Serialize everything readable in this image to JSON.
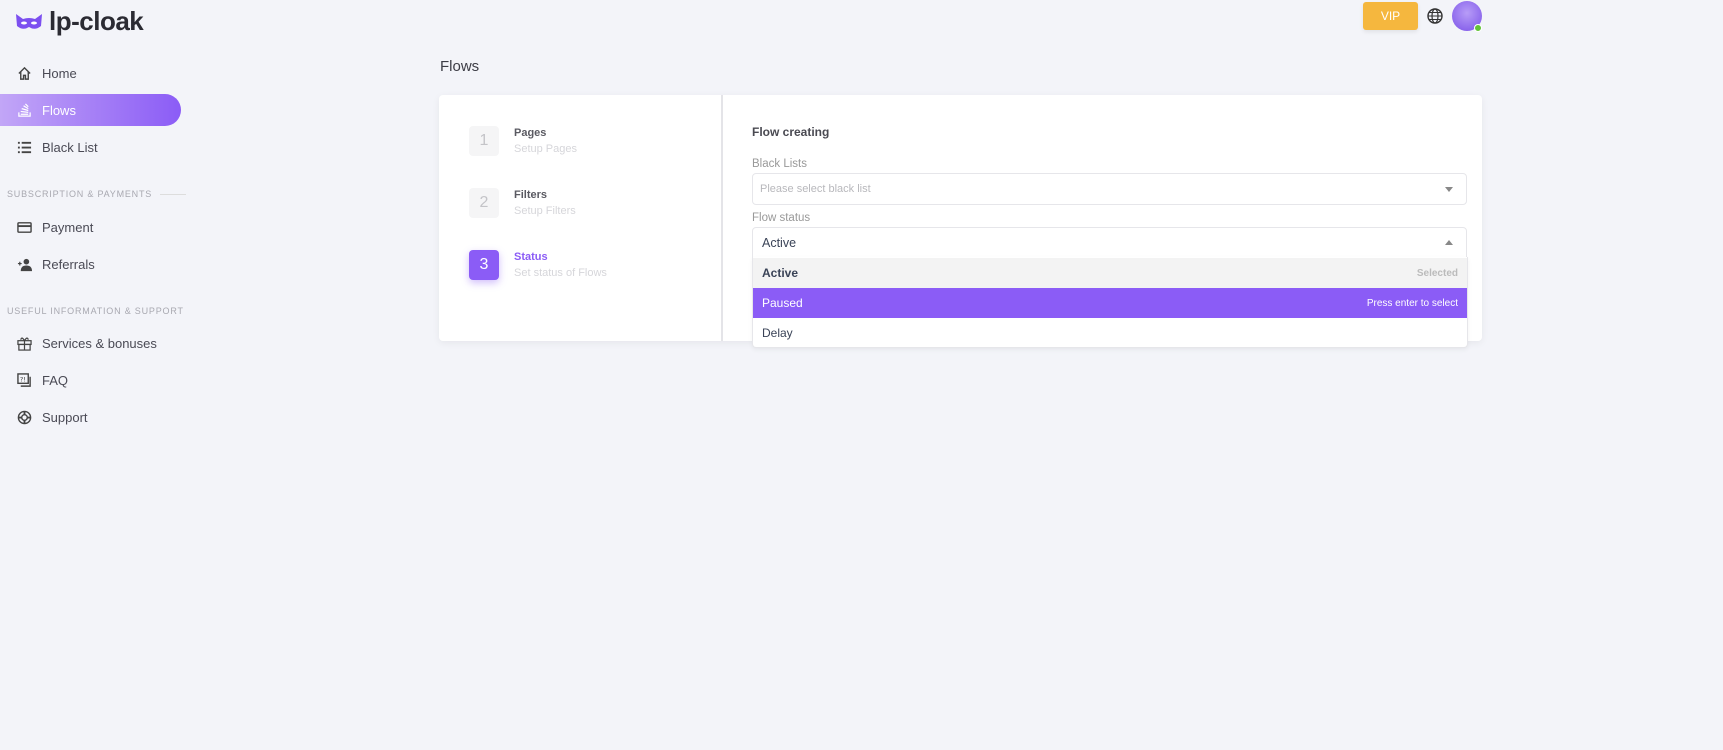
{
  "brand": {
    "name": "lp-cloak",
    "accent": "#8b5cf6"
  },
  "header": {
    "vip_label": "VIP",
    "language_icon": "globe-icon",
    "avatar_status": "online"
  },
  "sidebar": {
    "items": [
      {
        "label": "Home",
        "icon": "home-icon"
      },
      {
        "label": "Flows",
        "icon": "stack-icon",
        "active": true
      },
      {
        "label": "Black List",
        "icon": "list-icon"
      }
    ],
    "sections": [
      {
        "title": "SUBSCRIPTION & PAYMENTS",
        "items": [
          {
            "label": "Payment",
            "icon": "credit-card-icon"
          },
          {
            "label": "Referrals",
            "icon": "user-plus-icon"
          }
        ]
      },
      {
        "title": "USEFUL INFORMATION & SUPPORT",
        "items": [
          {
            "label": "Services & bonuses",
            "icon": "gift-icon"
          },
          {
            "label": "FAQ",
            "icon": "faq-icon"
          },
          {
            "label": "Support",
            "icon": "lifebuoy-icon"
          }
        ]
      }
    ]
  },
  "page": {
    "title": "Flows"
  },
  "steps": [
    {
      "number": "1",
      "title": "Pages",
      "subtitle": "Setup Pages"
    },
    {
      "number": "2",
      "title": "Filters",
      "subtitle": "Setup Filters"
    },
    {
      "number": "3",
      "title": "Status",
      "subtitle": "Set status of Flows",
      "active": true
    }
  ],
  "form": {
    "heading": "Flow creating",
    "black_lists": {
      "label": "Black Lists",
      "placeholder": "Please select black list"
    },
    "flow_status": {
      "label": "Flow status",
      "value": "Active",
      "options": [
        {
          "label": "Active",
          "hint": "Selected"
        },
        {
          "label": "Paused",
          "hint": "Press enter to select"
        },
        {
          "label": "Delay",
          "hint": ""
        }
      ]
    }
  }
}
